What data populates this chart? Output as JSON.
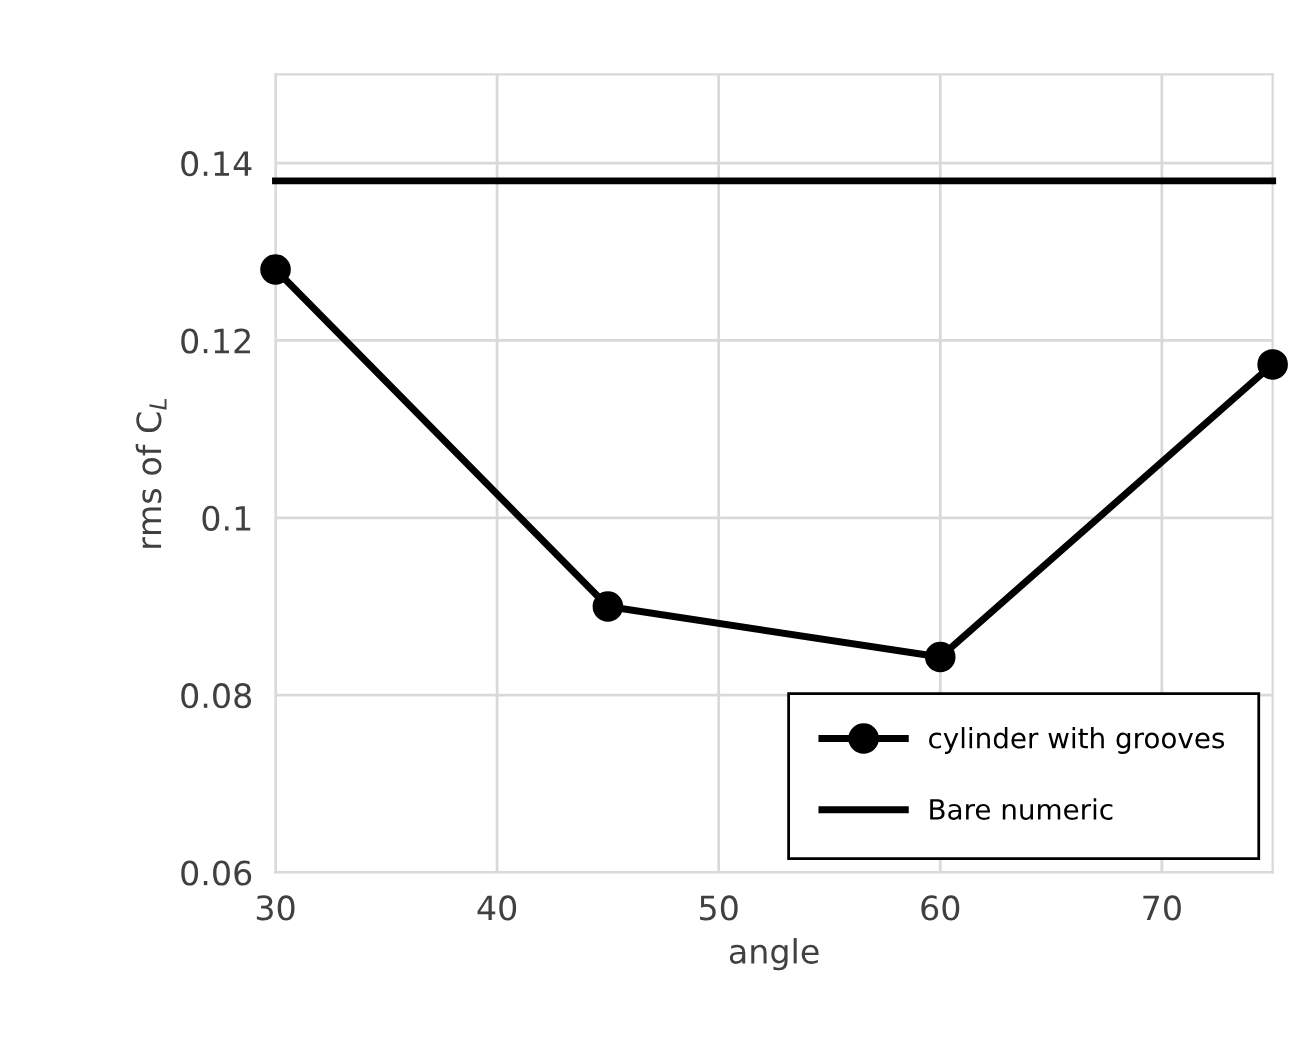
{
  "chart_data": {
    "type": "line",
    "xlabel": "angle",
    "ylabel": "rms of C$_{L}$",
    "series": [
      {
        "name": "cylinder with grooves",
        "color": "#000000",
        "marker": "circle",
        "x": [
          30,
          45,
          60,
          75
        ],
        "values": [
          0.128,
          0.09,
          0.0843,
          0.1173
        ]
      },
      {
        "name": "Bare numeric",
        "color": "#000000",
        "marker": "none",
        "x": [
          30,
          75
        ],
        "values": [
          0.138,
          0.138
        ]
      }
    ],
    "xlim": [
      30,
      75
    ],
    "xticks": [
      30,
      40,
      50,
      60,
      70
    ],
    "ylim": [
      0.06,
      0.15
    ],
    "yticks": [
      {
        "value": 0.06,
        "label": "0.06"
      },
      {
        "value": 0.08,
        "label": "0.08"
      },
      {
        "value": 0.1,
        "label": "0.1"
      },
      {
        "value": 0.12,
        "label": "0.12"
      },
      {
        "value": 0.14,
        "label": "0.14"
      }
    ],
    "grid": true,
    "legend": "bottom right",
    "line_style": "solid"
  }
}
